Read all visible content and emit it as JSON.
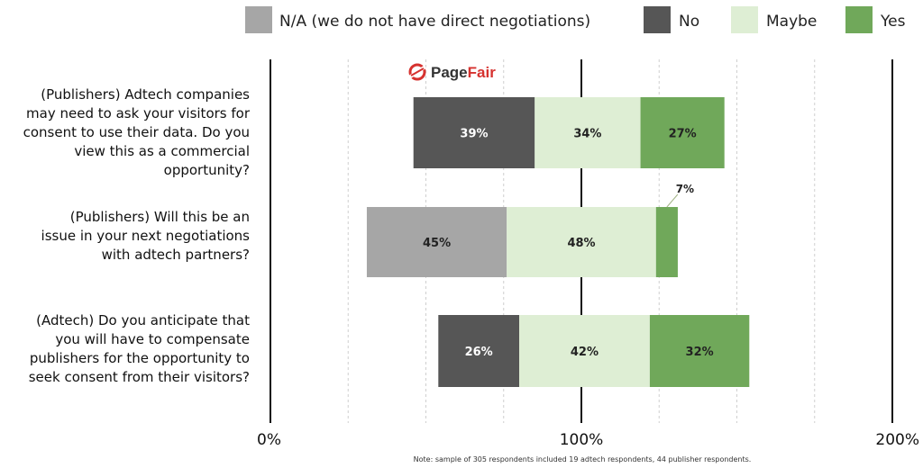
{
  "chart_data": {
    "type": "bar",
    "stacked": true,
    "orientation": "horizontal",
    "title": "",
    "xlabel": "",
    "ylabel": "",
    "xlim": [
      0,
      200
    ],
    "x_ticks": [
      "0%",
      "100%",
      "200%"
    ],
    "grid": true,
    "legend_placement": "top",
    "categories": [
      "(Publishers) Adtech companies may need to ask your visitors for consent to use their data. Do you view this as a commercial opportunity?",
      "(Publishers) Will this be an issue in your next negotiations with adtech partners?",
      "(Adtech) Do you anticipate that you will have to compensate publishers for the opportunity to seek consent from their visitors?"
    ],
    "category_lines": [
      [
        "(Publishers) Adtech companies",
        "may need to ask your visitors for",
        "consent to use their data. Do you",
        "view this as a commercial",
        "opportunity?"
      ],
      [
        "(Publishers) Will this be an",
        "issue in your next negotiations",
        "with adtech partners?"
      ],
      [
        "(Adtech) Do you anticipate that",
        "you will have to compensate",
        "publishers for the opportunity to",
        "seek consent from their visitors?"
      ]
    ],
    "series": [
      {
        "name": "N/A (we do not have direct negotiations)",
        "color": "#a6a6a6",
        "label_color": "#222222",
        "values": [
          0,
          45,
          0
        ]
      },
      {
        "name": "No",
        "color": "#565656",
        "label_color": "#ffffff",
        "values": [
          39,
          0,
          26
        ]
      },
      {
        "name": "Maybe",
        "color": "#deeed4",
        "label_color": "#222222",
        "values": [
          34,
          48,
          42
        ]
      },
      {
        "name": "Yes",
        "color": "#70a85a",
        "label_color": "#222222",
        "values": [
          27,
          7,
          32
        ]
      }
    ],
    "segment_labels": [
      [
        null,
        "39%",
        "34%",
        "27%"
      ],
      [
        "45%",
        null,
        "48%",
        "7%"
      ],
      [
        null,
        "26%",
        "42%",
        "32%"
      ]
    ],
    "divergence_note": "Bars are centered so the No/Maybe boundary aligns near the 100% line"
  },
  "brand": {
    "name": "PageFair",
    "name_prefix": "Page",
    "name_suffix": "Fair",
    "icon": "pagefair-logo-icon",
    "accent": "#d6322f"
  },
  "footnote": "Note: sample of 305 respondents included 19 adtech respondents, 44 publisher respondents."
}
